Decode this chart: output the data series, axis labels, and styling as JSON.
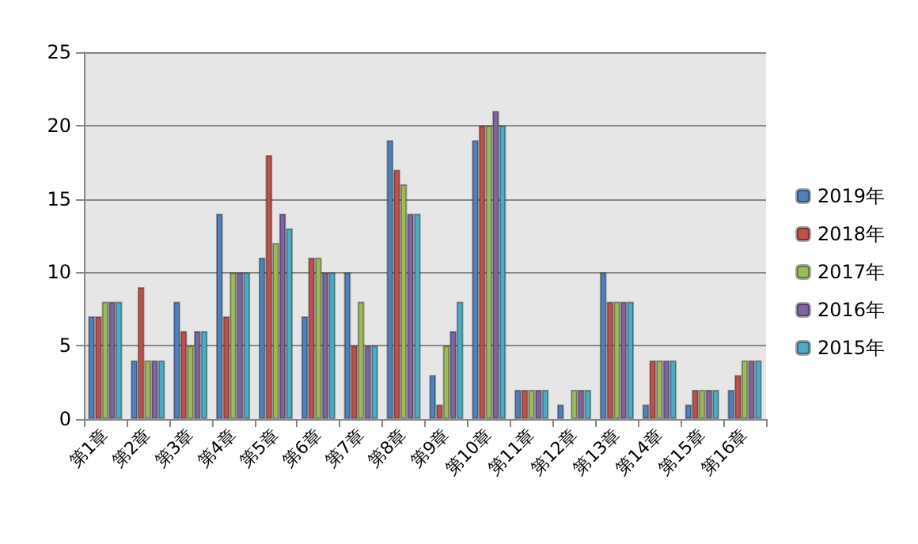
{
  "chart_data": {
    "type": "bar",
    "categories": [
      "第1章",
      "第2章",
      "第3章",
      "第4章",
      "第5章",
      "第6章",
      "第7章",
      "第8章",
      "第9章",
      "第10章",
      "第11章",
      "第12章",
      "第13章",
      "第14章",
      "第15章",
      "第16章"
    ],
    "series": [
      {
        "name": "2019年",
        "color": "#4f81bd",
        "values": [
          7,
          4,
          8,
          14,
          11,
          7,
          10,
          19,
          3,
          19,
          2,
          1,
          10,
          1,
          1,
          2
        ]
      },
      {
        "name": "2018年",
        "color": "#c0504d",
        "values": [
          7,
          9,
          6,
          7,
          18,
          11,
          5,
          17,
          1,
          20,
          2,
          0,
          8,
          4,
          2,
          3
        ]
      },
      {
        "name": "2017年",
        "color": "#9bbb59",
        "values": [
          8,
          4,
          5,
          10,
          12,
          11,
          8,
          16,
          5,
          20,
          2,
          2,
          8,
          4,
          2,
          4
        ]
      },
      {
        "name": "2016年",
        "color": "#8064a2",
        "values": [
          8,
          4,
          6,
          10,
          14,
          10,
          5,
          14,
          6,
          21,
          2,
          2,
          8,
          4,
          2,
          4
        ]
      },
      {
        "name": "2015年",
        "color": "#4bacc6",
        "values": [
          8,
          4,
          6,
          10,
          13,
          10,
          5,
          14,
          8,
          20,
          2,
          2,
          8,
          4,
          2,
          4
        ]
      }
    ],
    "ylim": [
      0,
      25
    ],
    "yticks": [
      0,
      5,
      10,
      15,
      20,
      25
    ],
    "grid": "y",
    "legend": "right"
  }
}
